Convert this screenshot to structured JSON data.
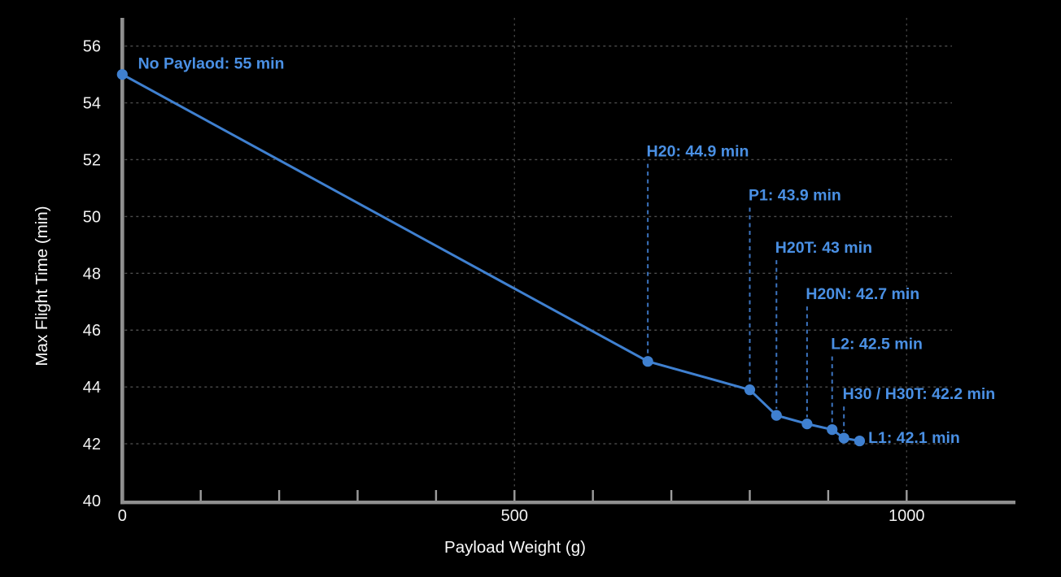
{
  "colors": {
    "background": "#000000",
    "axis": "#8f8f8f",
    "tick_mark": "#9c9c9c",
    "grid_horizontal": "#4c4c4c",
    "grid_vertical": "#424242",
    "axis_text": "#f2f2f2",
    "axis_title_text": "#fafafa",
    "series_line": "#3f80d0",
    "point_fill": "#3f80d0",
    "annotation_text": "#4a90e4",
    "leader_line": "#3c74c0"
  },
  "chart_data": {
    "type": "line",
    "title": "",
    "xlabel": "Payload Weight (g)",
    "ylabel": "Max Flight Time (min)",
    "xlim": [
      0,
      1140
    ],
    "ylim": [
      40,
      57.2
    ],
    "x_major_ticks": [
      0,
      500,
      1000
    ],
    "x_major_tick_labels": [
      "0",
      "500",
      "1000"
    ],
    "x_minor_tick_step": 100,
    "x_minor_tick_max": 1000,
    "y_ticks": [
      40,
      42,
      44,
      46,
      48,
      50,
      52,
      54,
      56
    ],
    "y_tick_labels": [
      "40",
      "42",
      "44",
      "46",
      "48",
      "50",
      "52",
      "54",
      "56"
    ],
    "grid": true,
    "legend": false,
    "series": [
      {
        "name": "max-flight-time",
        "points": [
          {
            "id": "no-payload",
            "payload_g": 0,
            "flight_min": 55,
            "label": "No Paylaod: 55 min",
            "label_x_g": 20,
            "label_y_min": 55.4,
            "leader_line": false
          },
          {
            "id": "h20",
            "payload_g": 670,
            "flight_min": 44.9,
            "label": "H20: 44.9 min",
            "label_x_g": 670,
            "label_y_min": 52.31,
            "leader_line": true
          },
          {
            "id": "p1",
            "payload_g": 800,
            "flight_min": 43.9,
            "label": "P1: 43.9 min",
            "label_x_g": 800,
            "label_y_min": 50.77,
            "leader_line": true
          },
          {
            "id": "h20t",
            "payload_g": 834,
            "flight_min": 43,
            "label": "H20T: 43 min",
            "label_x_g": 834,
            "label_y_min": 48.92,
            "leader_line": true
          },
          {
            "id": "h20n",
            "payload_g": 873,
            "flight_min": 42.7,
            "label": "H20N: 42.7 min",
            "label_x_g": 873,
            "label_y_min": 47.29,
            "leader_line": true
          },
          {
            "id": "l2",
            "payload_g": 905,
            "flight_min": 42.5,
            "label": "L2: 42.5 min",
            "label_x_g": 905,
            "label_y_min": 45.53,
            "leader_line": true
          },
          {
            "id": "h30-h30t",
            "payload_g": 920,
            "flight_min": 42.2,
            "label": "H30 / H30T: 42.2 min",
            "label_x_g": 920,
            "label_y_min": 43.77,
            "leader_line": true
          },
          {
            "id": "l1",
            "payload_g": 940,
            "flight_min": 42.1,
            "label": "L1: 42.1 min",
            "label_x_g": 951,
            "label_y_min": 42.23,
            "leader_line": false
          }
        ]
      }
    ]
  }
}
